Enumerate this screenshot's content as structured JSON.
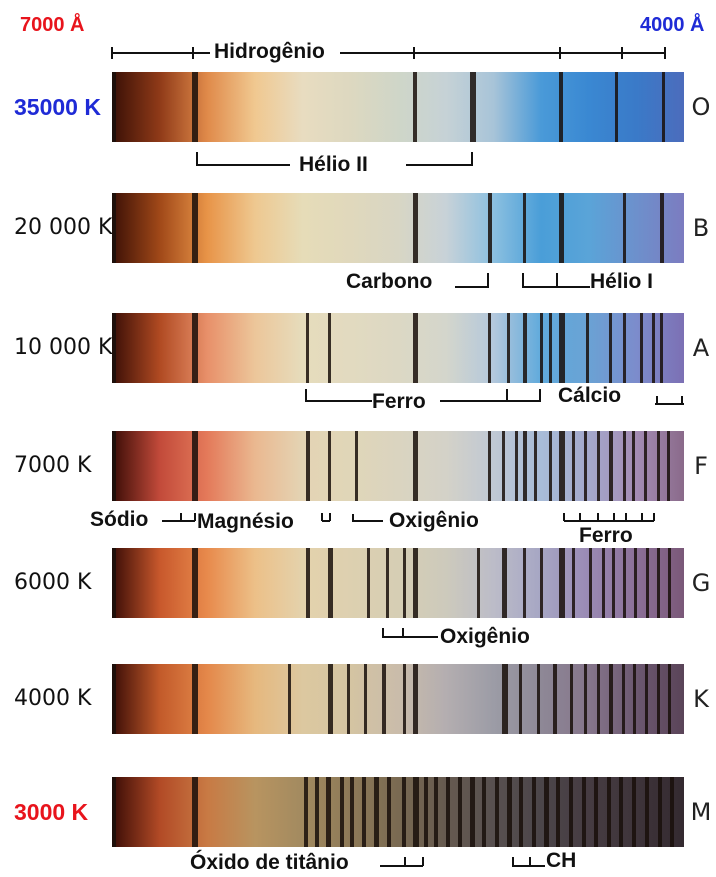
{
  "wavelength": {
    "left": "7000 Å",
    "right": "4000 Å",
    "left_color": "#e8141c",
    "right_color": "#1f2bd6"
  },
  "spectra": [
    {
      "temperature": "35000 K",
      "class": "O",
      "style": "hot",
      "gradient": [
        "#3a1006",
        "#8f3a18",
        "#e08a4a",
        "#f0c890",
        "#e8dcc0",
        "#ddd8c0",
        "#cfd6c8",
        "#c6d2d6",
        "#a8c4d8",
        "#4a9ad8",
        "#3a88d2",
        "#3a7ac8",
        "#4c6cbc"
      ]
    },
    {
      "temperature": "20 000 K",
      "class": "B",
      "style": "normal",
      "gradient": [
        "#3c1006",
        "#a04818",
        "#e89448",
        "#eec890",
        "#e6dcb8",
        "#e0d8bc",
        "#d8d6c4",
        "#c8d2d8",
        "#8cc0e0",
        "#4a9ed8",
        "#5aa4d8",
        "#6d90cc",
        "#7c7cc0"
      ]
    },
    {
      "temperature": "10 000 K",
      "class": "A",
      "style": "normal",
      "gradient": [
        "#3a0e06",
        "#b04a22",
        "#e8906a",
        "#ecc69a",
        "#e6dcbc",
        "#e2dac0",
        "#dcd8c4",
        "#d4d6cc",
        "#b4c8dc",
        "#60aadc",
        "#6aa2d4",
        "#7c8ccc",
        "#7c70b4"
      ]
    },
    {
      "temperature": "7000 K",
      "class": "F",
      "style": "normal",
      "gradient": [
        "#3a0c06",
        "#c24a3a",
        "#e47a5a",
        "#eab890",
        "#e4d4b4",
        "#e0d6b8",
        "#dad4c0",
        "#d4d2c8",
        "#c0c8d4",
        "#a8bcd8",
        "#a4a8cc",
        "#a48cb4",
        "#8a6a8a"
      ]
    },
    {
      "temperature": "6000 K",
      "class": "G",
      "style": "normal",
      "gradient": [
        "#3a0c06",
        "#c8582c",
        "#e88a4c",
        "#ecc088",
        "#e4d2ac",
        "#ddd0b0",
        "#d6ceb4",
        "#cdcabc",
        "#bcbcc8",
        "#a6a6c4",
        "#9a8ab4",
        "#8c7098",
        "#7a5878"
      ]
    },
    {
      "temperature": "4000 K",
      "class": "K",
      "style": "normal",
      "gradient": [
        "#3a0c06",
        "#c25a2a",
        "#e4884a",
        "#e6b87e",
        "#dcc8a0",
        "#d4c4a2",
        "#cabcaa",
        "#b4aeb0",
        "#9c9ca6",
        "#8e8896",
        "#86768c",
        "#6c5870",
        "#5a4458"
      ]
    },
    {
      "temperature": "3000 K",
      "class": "M",
      "style": "cool",
      "gradient": [
        "#3a0c06",
        "#b24a26",
        "#c87a44",
        "#b89460",
        "#a28a60",
        "#8e7a58",
        "#7a6a52",
        "#665a50",
        "#585050",
        "#4c464a",
        "#463c42",
        "#3e343a",
        "#342a30"
      ]
    }
  ],
  "labels": {
    "hidrogenio": "Hidrogênio",
    "helio_ii": "Hélio II",
    "carbono": "Carbono",
    "helio_i": "Hélio I",
    "ferro_a": "Ferro",
    "calcio": "Cálcio",
    "sodio": "Sódio",
    "magnesio": "Magnésio",
    "oxigenio_f": "Oxigênio",
    "ferro_f": "Ferro",
    "oxigenio_g": "Oxigênio",
    "oxido_titanio": "Óxido de titânio",
    "ch": "CH"
  }
}
